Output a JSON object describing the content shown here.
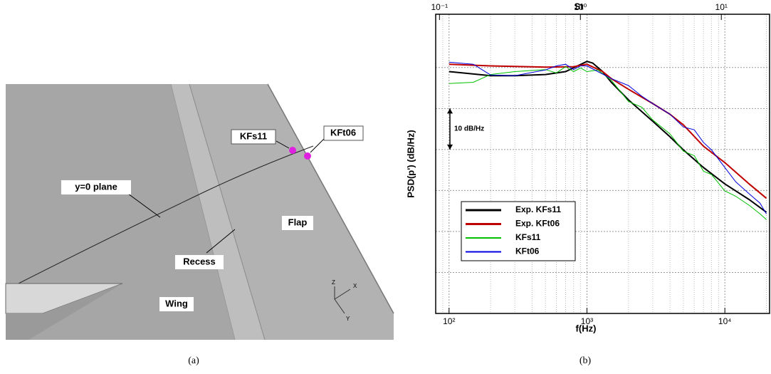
{
  "panel_a": {
    "labels": {
      "kfs11": "KFs11",
      "kft06": "KFt06",
      "plane": "y=0 plane",
      "flap": "Flap",
      "recess": "Recess",
      "wing": "Wing"
    },
    "axes": [
      "Z",
      "X",
      "Y"
    ],
    "caption": "(a)"
  },
  "chart_data": {
    "type": "line",
    "caption": "(b)",
    "xlabel": "f(Hz)",
    "ylabel": "PSD(p') (dB/Hz)",
    "x2label": "St",
    "xscale": "log",
    "xlim": [
      80,
      21100
    ],
    "xticks": [
      {
        "value": 100,
        "label": "10²"
      },
      {
        "value": 1000,
        "label": "10³"
      },
      {
        "value": 10000,
        "label": "10⁴"
      }
    ],
    "xminor_ticks": [
      90,
      200,
      300,
      400,
      500,
      600,
      700,
      800,
      900,
      2000,
      3000,
      4000,
      5000,
      6000,
      7000,
      8000,
      9000,
      20000
    ],
    "x2lim": [
      0.094,
      22
    ],
    "x2ticks": [
      {
        "value": 0.1,
        "label": "10⁻¹"
      },
      {
        "value": 1,
        "label": "10⁰"
      },
      {
        "value": 10,
        "label": "10¹"
      }
    ],
    "ylim": [
      0,
      73
    ],
    "ygrid": [
      10,
      20,
      30,
      40,
      50,
      60
    ],
    "grid": true,
    "scale_bar": {
      "label": "10 dB/Hz",
      "range": [
        40,
        50
      ]
    },
    "legend": "lower left",
    "series": [
      {
        "name": "Exp. KFs11",
        "color": "#000000",
        "width": 2,
        "x": [
          100,
          200,
          300,
          500,
          700,
          1000,
          1100,
          1300,
          1500,
          2000,
          3000,
          4000,
          5000,
          7000,
          10000,
          15000,
          20000
        ],
        "values": [
          59.0,
          58.0,
          58.0,
          58.3,
          59.0,
          61.5,
          61.1,
          59.0,
          56.4,
          52.1,
          46.9,
          43.1,
          39.9,
          35.6,
          31.6,
          27.8,
          24.7
        ]
      },
      {
        "name": "Exp. KFt06",
        "color": "#c00000",
        "width": 2,
        "x": [
          100,
          200,
          500,
          800,
          1000,
          1300,
          1500,
          2000,
          3000,
          4000,
          5000,
          7000,
          10000,
          15000,
          20000
        ],
        "values": [
          60.8,
          60.4,
          60.1,
          60.2,
          60.8,
          59.0,
          57.3,
          54.7,
          51.2,
          48.6,
          46.0,
          40.8,
          36.8,
          31.6,
          28.1
        ]
      },
      {
        "name": "KFs11",
        "color": "#00c000",
        "width": 1,
        "x": [
          100,
          150,
          200,
          300,
          500,
          600,
          700,
          800,
          900,
          1000,
          1200,
          1500,
          2000,
          2500,
          3000,
          4000,
          5000,
          6000,
          7000,
          8000,
          10000,
          12000,
          15000,
          18000,
          20000
        ],
        "values": [
          56.1,
          56.4,
          58.3,
          59.0,
          59.5,
          58.7,
          60.2,
          59.0,
          59.9,
          59.0,
          59.4,
          56.9,
          51.7,
          50.3,
          47.2,
          43.8,
          39.6,
          38.5,
          34.7,
          33.9,
          29.9,
          28.6,
          26.4,
          24.3,
          22.9
        ]
      },
      {
        "name": "KFt06",
        "color": "#0000e0",
        "width": 1,
        "x": [
          100,
          150,
          200,
          300,
          500,
          600,
          700,
          800,
          900,
          1000,
          1200,
          1500,
          2000,
          2500,
          3000,
          4000,
          5000,
          6000,
          7000,
          8000,
          10000,
          12000,
          15000,
          18000,
          20000
        ],
        "values": [
          61.3,
          60.8,
          58.2,
          58.0,
          59.4,
          60.4,
          60.8,
          59.5,
          60.4,
          60.4,
          59.0,
          57.3,
          55.6,
          53.0,
          51.2,
          48.6,
          45.5,
          44.8,
          41.7,
          39.9,
          35.6,
          32.1,
          29.2,
          26.9,
          24.3
        ]
      }
    ]
  }
}
